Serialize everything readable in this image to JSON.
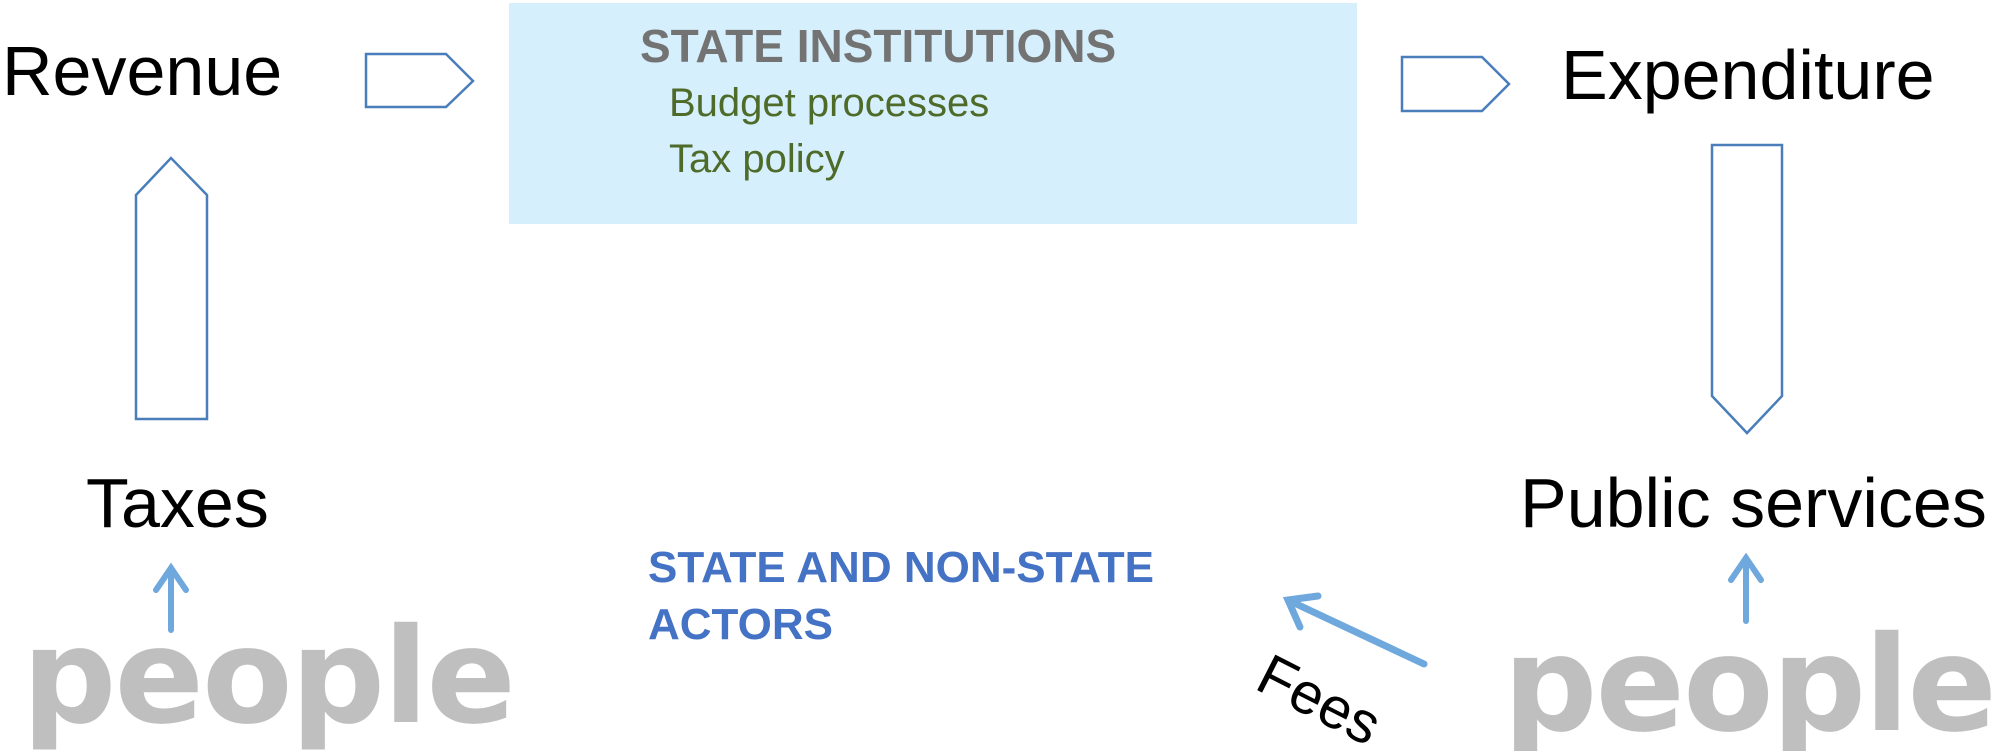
{
  "revenue": "Revenue",
  "state_institutions": {
    "title": "STATE INSTITUTIONS",
    "items": [
      "Budget processes",
      "Tax policy"
    ]
  },
  "expenditure": "Expenditure",
  "taxes": "Taxes",
  "public_services": "Public services",
  "actors": [
    "STATE AND NON-STATE",
    "ACTORS"
  ],
  "fees": "Fees",
  "people_left": "people",
  "people_right": "people"
}
